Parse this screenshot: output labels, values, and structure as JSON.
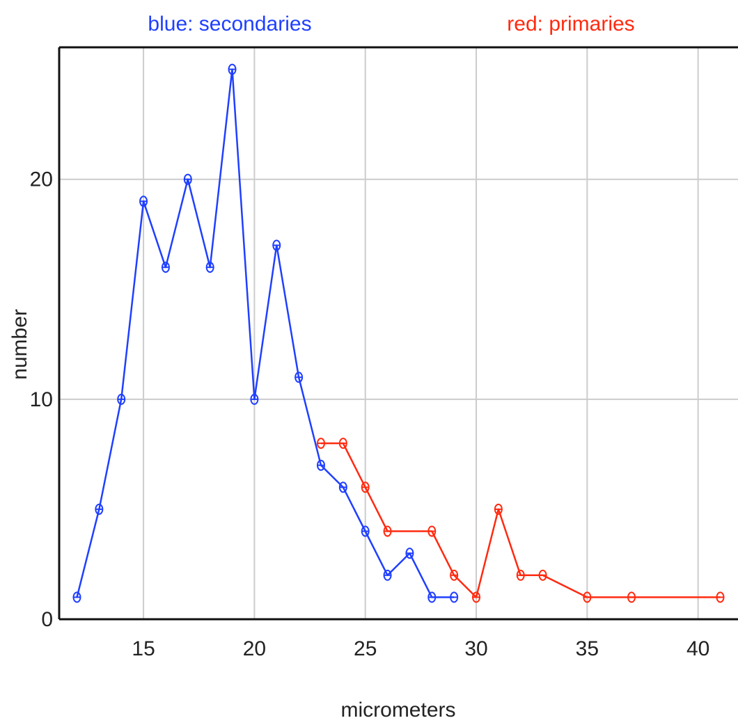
{
  "chart_data": {
    "type": "line",
    "xlabel": "micrometers",
    "ylabel": "number",
    "xlim": [
      11.2,
      41.8
    ],
    "ylim": [
      0,
      26
    ],
    "x_ticks": [
      15,
      20,
      25,
      30,
      35,
      40
    ],
    "y_ticks": [
      0,
      10,
      20
    ],
    "grid": true,
    "legend_placement": "top",
    "series": [
      {
        "name": "blue: secondaries",
        "color": "#1f3fff",
        "x": [
          12,
          13,
          14,
          15,
          16,
          17,
          18,
          19,
          20,
          21,
          22,
          23,
          24,
          25,
          26,
          27,
          28,
          29
        ],
        "values": [
          1,
          5,
          10,
          19,
          16,
          20,
          16,
          25,
          10,
          17,
          11,
          7,
          6,
          4,
          2,
          3,
          1,
          1
        ]
      },
      {
        "name": "red: primaries",
        "color": "#ff2a10",
        "x": [
          23,
          24,
          25,
          26,
          28,
          29,
          30,
          31,
          32,
          33,
          35,
          37,
          41
        ],
        "values": [
          8,
          8,
          6,
          4,
          4,
          2,
          1,
          5,
          2,
          2,
          1,
          1,
          1
        ]
      }
    ]
  }
}
